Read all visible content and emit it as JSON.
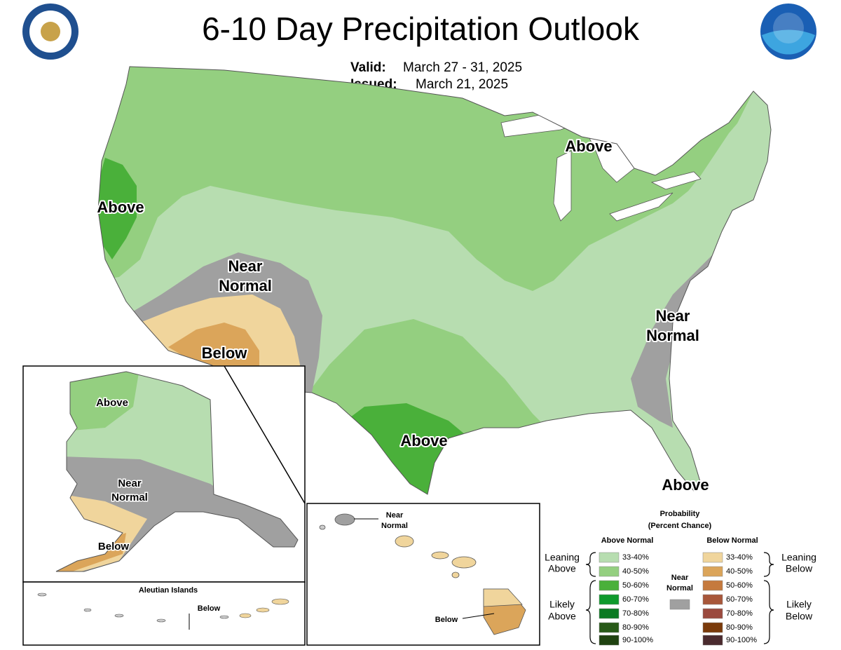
{
  "header": {
    "title": "6-10 Day Precipitation Outlook",
    "valid_label": "Valid:",
    "valid": "March 27 - 31, 2025",
    "issued_label": "Issued:",
    "issued": "March 21, 2025"
  },
  "map_labels": [
    {
      "lines": [
        "Above"
      ]
    },
    {
      "lines": [
        "Near",
        "Normal"
      ]
    },
    {
      "lines": [
        "Below"
      ]
    },
    {
      "lines": [
        "Above"
      ]
    },
    {
      "lines": [
        "Above"
      ]
    },
    {
      "lines": [
        "Near",
        "Normal"
      ]
    },
    {
      "lines": [
        "Above"
      ]
    }
  ],
  "alaska_labels": [
    {
      "lines": [
        "Above"
      ]
    },
    {
      "lines": [
        "Near",
        "Normal"
      ]
    },
    {
      "lines": [
        "Below"
      ]
    }
  ],
  "aleutian": {
    "title": "Aleutian Islands",
    "label": "Below"
  },
  "hawaii_labels": [
    {
      "lines": [
        "Near",
        "Normal"
      ]
    },
    {
      "lines": [
        "Below"
      ]
    }
  ],
  "legend": {
    "title": [
      "Probability",
      "(Percent Chance)"
    ],
    "above_header": "Above Normal",
    "below_header": "Below Normal",
    "near_normal": {
      "lines": [
        "Near",
        "Normal"
      ],
      "color": "#a0a0a0"
    },
    "leaning_above": [
      "Leaning",
      "Above"
    ],
    "likely_above": [
      "Likely",
      "Above"
    ],
    "leaning_below": [
      "Leaning",
      "Below"
    ],
    "likely_below": [
      "Likely",
      "Below"
    ],
    "above_bins": [
      {
        "label": "33-40%",
        "color": "#b7ddb0"
      },
      {
        "label": "40-50%",
        "color": "#94cf80"
      },
      {
        "label": "50-60%",
        "color": "#4ab03a"
      },
      {
        "label": "60-70%",
        "color": "#0e9a2c"
      },
      {
        "label": "70-80%",
        "color": "#0b7a22"
      },
      {
        "label": "80-90%",
        "color": "#285a18"
      },
      {
        "label": "90-100%",
        "color": "#1f4210"
      }
    ],
    "below_bins": [
      {
        "label": "33-40%",
        "color": "#f0d59c"
      },
      {
        "label": "40-50%",
        "color": "#dba55a"
      },
      {
        "label": "50-60%",
        "color": "#c57a3e"
      },
      {
        "label": "60-70%",
        "color": "#a8573a"
      },
      {
        "label": "70-80%",
        "color": "#9b4a3e"
      },
      {
        "label": "80-90%",
        "color": "#7a3a0a"
      },
      {
        "label": "90-100%",
        "color": "#4a2a2e"
      }
    ]
  }
}
